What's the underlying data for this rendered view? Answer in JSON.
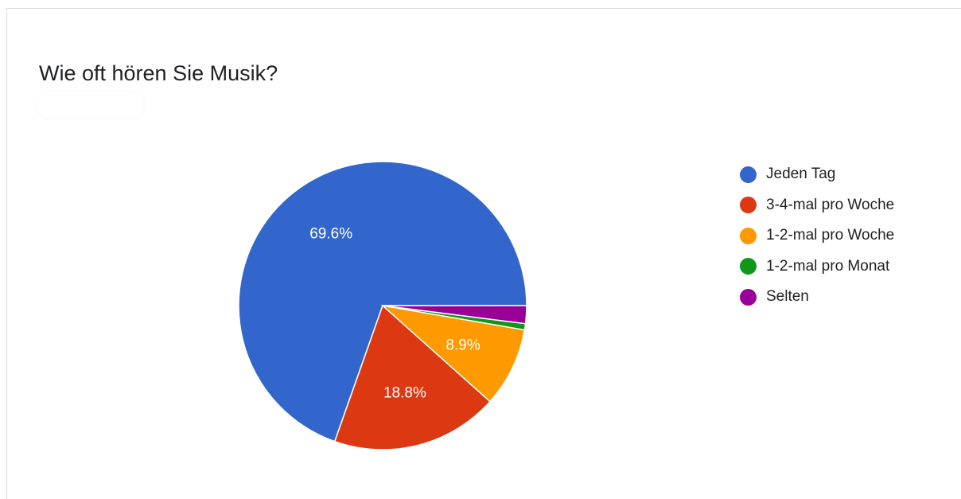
{
  "question": {
    "title": "Wie oft hören Sie Musik?"
  },
  "chart_data": {
    "type": "pie",
    "title": "Wie oft hören Sie Musik?",
    "legend_position": "right",
    "slices": [
      {
        "label": "Jeden Tag",
        "value": 69.6,
        "display": "69.6%",
        "color": "#3366cc"
      },
      {
        "label": "3-4-mal pro Woche",
        "value": 18.8,
        "display": "18.8%",
        "color": "#dc3912"
      },
      {
        "label": "1-2-mal pro Woche",
        "value": 8.9,
        "display": "8.9%",
        "color": "#ff9900"
      },
      {
        "label": "1-2-mal pro Monat",
        "value": 0.7,
        "display": "",
        "color": "#109618"
      },
      {
        "label": "Selten",
        "value": 2.0,
        "display": "",
        "color": "#990099"
      }
    ]
  }
}
